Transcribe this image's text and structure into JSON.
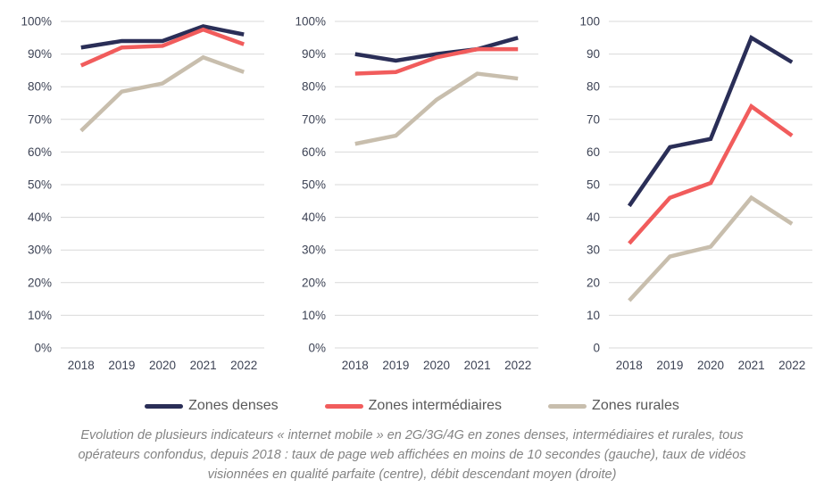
{
  "colors": {
    "denses": "#2A2E57",
    "intermediaires": "#F15C5C",
    "rurales": "#C8BEAD",
    "grid": "#D9D9D9",
    "axis_text": "#3D4355",
    "legend_text": "#595959",
    "caption_text": "#838383"
  },
  "legend": {
    "items": [
      {
        "label": "Zones denses",
        "color_key": "denses"
      },
      {
        "label": "Zones intermédiaires",
        "color_key": "intermediaires"
      },
      {
        "label": "Zones rurales",
        "color_key": "rurales"
      }
    ]
  },
  "caption": {
    "lines": [
      "Evolution de plusieurs indicateurs « internet mobile » en 2G/3G/4G en zones denses, intermédiaires et rurales, tous",
      "opérateurs confondus, depuis 2018 : taux de page web affichées en moins de 10 secondes (gauche), taux de vidéos",
      "visionnées en qualité parfaite (centre), débit descendant moyen (droite)"
    ]
  },
  "chart_data": [
    {
      "type": "line",
      "position": "left",
      "title": "taux de page web affichées en moins de 10 secondes",
      "x": [
        "2018",
        "2019",
        "2020",
        "2021",
        "2022"
      ],
      "y_ticks": [
        "0%",
        "10%",
        "20%",
        "30%",
        "40%",
        "50%",
        "60%",
        "70%",
        "80%",
        "90%",
        "100%"
      ],
      "ylim": [
        0,
        100
      ],
      "grid": true,
      "legend_position": "bottom-shared",
      "series": [
        {
          "name": "Zones denses",
          "color_key": "denses",
          "values": [
            92,
            94,
            94,
            98.5,
            96
          ]
        },
        {
          "name": "Zones intermédiaires",
          "color_key": "intermediaires",
          "values": [
            86.5,
            92,
            92.5,
            97.5,
            93
          ]
        },
        {
          "name": "Zones rurales",
          "color_key": "rurales",
          "values": [
            66.5,
            78.5,
            81,
            89,
            84.5
          ]
        }
      ]
    },
    {
      "type": "line",
      "position": "center",
      "title": "taux de vidéos visionnées en qualité parfaite",
      "x": [
        "2018",
        "2019",
        "2020",
        "2021",
        "2022"
      ],
      "y_ticks": [
        "0%",
        "10%",
        "20%",
        "30%",
        "40%",
        "50%",
        "60%",
        "70%",
        "80%",
        "90%",
        "100%"
      ],
      "ylim": [
        0,
        100
      ],
      "grid": true,
      "legend_position": "bottom-shared",
      "series": [
        {
          "name": "Zones denses",
          "color_key": "denses",
          "values": [
            90,
            88,
            90,
            91.5,
            95
          ]
        },
        {
          "name": "Zones intermédiaires",
          "color_key": "intermediaires",
          "values": [
            84,
            84.5,
            89,
            91.5,
            91.5
          ]
        },
        {
          "name": "Zones rurales",
          "color_key": "rurales",
          "values": [
            62.5,
            65,
            76,
            84,
            82.5
          ]
        }
      ]
    },
    {
      "type": "line",
      "position": "right",
      "title": "débit descendant moyen",
      "x": [
        "2018",
        "2019",
        "2020",
        "2021",
        "2022"
      ],
      "y_ticks": [
        "0",
        "10",
        "20",
        "30",
        "40",
        "50",
        "60",
        "70",
        "80",
        "90",
        "100"
      ],
      "ylim": [
        0,
        100
      ],
      "grid": true,
      "legend_position": "bottom-shared",
      "series": [
        {
          "name": "Zones denses",
          "color_key": "denses",
          "values": [
            43.5,
            61.5,
            64,
            95,
            87.5
          ]
        },
        {
          "name": "Zones intermédiaires",
          "color_key": "intermediaires",
          "values": [
            32,
            46,
            50.5,
            74,
            65
          ]
        },
        {
          "name": "Zones rurales",
          "color_key": "rurales",
          "values": [
            14.5,
            28,
            31,
            46,
            38
          ]
        }
      ]
    }
  ]
}
